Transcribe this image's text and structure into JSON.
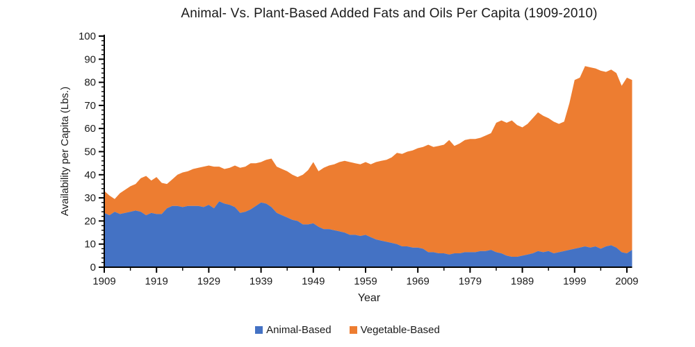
{
  "chart_data": {
    "type": "area",
    "stacked": true,
    "title": "Animal- Vs. Plant-Based Added Fats and Oils Per Capita (1909-2010)",
    "xlabel": "Year",
    "ylabel": "Availability per Capita (Lbs.)",
    "ylim": [
      0,
      100
    ],
    "y_major_step": 10,
    "y_minor_step": 2,
    "x_tick_labels": [
      1909,
      1919,
      1929,
      1939,
      1949,
      1959,
      1969,
      1979,
      1989,
      1999,
      2009
    ],
    "x_minor_step": 5,
    "grid": "off",
    "legend_position": "bottom",
    "x": [
      1909,
      1910,
      1911,
      1912,
      1913,
      1914,
      1915,
      1916,
      1917,
      1918,
      1919,
      1920,
      1921,
      1922,
      1923,
      1924,
      1925,
      1926,
      1927,
      1928,
      1929,
      1930,
      1931,
      1932,
      1933,
      1934,
      1935,
      1936,
      1937,
      1938,
      1939,
      1940,
      1941,
      1942,
      1943,
      1944,
      1945,
      1946,
      1947,
      1948,
      1949,
      1950,
      1951,
      1952,
      1953,
      1954,
      1955,
      1956,
      1957,
      1958,
      1959,
      1960,
      1961,
      1962,
      1963,
      1964,
      1965,
      1966,
      1967,
      1968,
      1969,
      1970,
      1971,
      1972,
      1973,
      1974,
      1975,
      1976,
      1977,
      1978,
      1979,
      1980,
      1981,
      1982,
      1983,
      1984,
      1985,
      1986,
      1987,
      1988,
      1989,
      1990,
      1991,
      1992,
      1993,
      1994,
      1995,
      1996,
      1997,
      1998,
      1999,
      2000,
      2001,
      2002,
      2003,
      2004,
      2005,
      2006,
      2007,
      2008,
      2009,
      2010
    ],
    "series": [
      {
        "name": "Animal-Based",
        "color": "#4472C4",
        "values": [
          23.5,
          22.5,
          24,
          23,
          23.5,
          24,
          24.5,
          24,
          22.5,
          23.5,
          23,
          23,
          25.5,
          26.5,
          26.5,
          26,
          26.5,
          26.5,
          26.5,
          26,
          27,
          25.5,
          28.5,
          27.5,
          27,
          26,
          23.5,
          24,
          25,
          26.5,
          28,
          27.5,
          26,
          23.5,
          22.5,
          21.5,
          20.5,
          20,
          18.5,
          18.5,
          19,
          17.5,
          16.5,
          16.5,
          16,
          15.5,
          15,
          14,
          14,
          13.5,
          14,
          13,
          12,
          11.5,
          11,
          10.5,
          10,
          9,
          9,
          8.5,
          8.5,
          8,
          6.5,
          6.5,
          6,
          6,
          5.5,
          6,
          6,
          6.5,
          6.5,
          6.5,
          7,
          7,
          7.5,
          6.5,
          6,
          5,
          4.5,
          4.5,
          5,
          5.5,
          6,
          7,
          6.5,
          7,
          6,
          6.5,
          7,
          7.5,
          8,
          8.5,
          9,
          8.5,
          9,
          8,
          9,
          9.5,
          8.5,
          6.5,
          6,
          7.5
        ]
      },
      {
        "name": "Vegetable-Based",
        "color": "#ED7D31",
        "values": [
          9.5,
          8.5,
          5.5,
          9,
          10,
          11,
          11.5,
          14.5,
          17,
          14,
          16,
          13.5,
          10.5,
          11.5,
          13.5,
          15,
          15,
          16,
          16.5,
          17.5,
          17,
          18,
          15,
          15,
          16,
          18,
          19.5,
          19.5,
          20,
          18.5,
          17.5,
          19,
          21,
          20,
          20,
          20,
          19.5,
          19,
          21.5,
          23.5,
          26.5,
          24,
          26.5,
          27.5,
          28.5,
          30,
          31,
          31.5,
          31,
          31,
          31.5,
          31.5,
          33.5,
          34.5,
          35.5,
          37,
          39.5,
          40,
          41,
          42,
          43,
          44,
          46.5,
          45.5,
          46.5,
          47,
          49.5,
          46.5,
          47.5,
          48.5,
          49,
          49,
          49,
          50,
          50.5,
          56,
          57.5,
          57.5,
          59,
          57,
          55.5,
          56.5,
          58.5,
          60,
          59,
          57.5,
          57,
          55.5,
          56,
          63.5,
          73,
          73.5,
          78,
          78,
          77,
          77,
          75.5,
          76,
          75.5,
          72,
          76,
          73.5
        ]
      }
    ]
  }
}
